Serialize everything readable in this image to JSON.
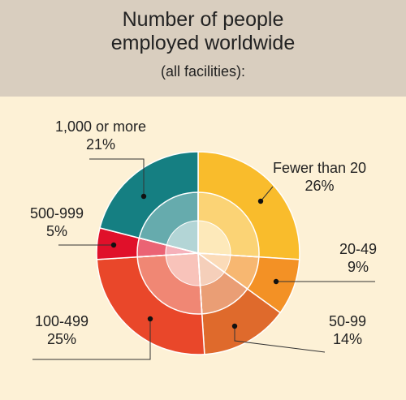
{
  "header": {
    "title_line1": "Number of people",
    "title_line2": "employed worldwide",
    "subtitle": "(all facilities):"
  },
  "chart_data": {
    "type": "pie",
    "title": "Number of people employed worldwide",
    "subtitle": "(all facilities):",
    "categories": [
      "Fewer than 20",
      "20-49",
      "50-99",
      "100-499",
      "500-999",
      "1,000 or more"
    ],
    "values": [
      26,
      9,
      14,
      25,
      5,
      21
    ],
    "value_labels": [
      "26%",
      "9%",
      "14%",
      "25%",
      "5%",
      "21%"
    ],
    "unit": "%",
    "start": "12 o'clock, clockwise",
    "legend": "none (direct labels with leader lines)",
    "colors": [
      "#f9bc2c",
      "#f39125",
      "#df6a2c",
      "#e9472a",
      "#e0102a",
      "#157f82"
    ],
    "inner_ring": true
  }
}
